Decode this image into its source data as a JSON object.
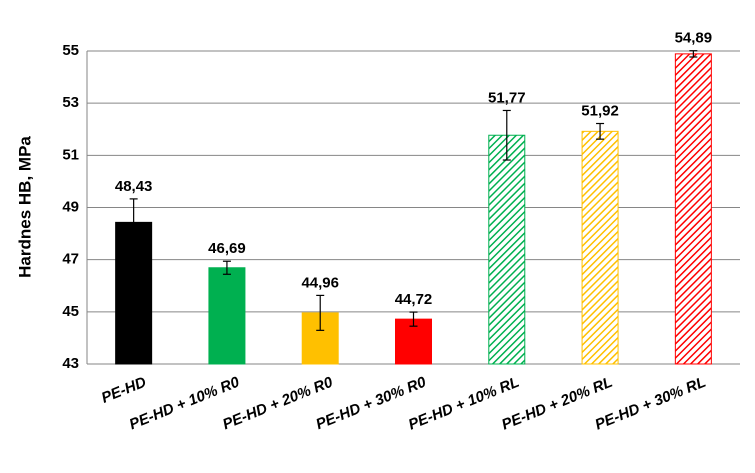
{
  "chart_data": {
    "type": "bar",
    "y_label": "Hardnes HB, MPa",
    "categories": [
      "PE-HD",
      "PE-HD + 10% R0",
      "PE-HD + 20% R0",
      "PE-HD + 30% R0",
      "PE-HD + 10% RL",
      "PE-HD + 20% RL",
      "PE-HD + 30% RL"
    ],
    "values": [
      48.43,
      46.69,
      44.96,
      44.72,
      51.77,
      51.92,
      54.89
    ],
    "value_labels": [
      "48,43",
      "46,69",
      "44,96",
      "44,72",
      "51,77",
      "51,92",
      "54,89"
    ],
    "errors": [
      0.9,
      0.25,
      0.67,
      0.27,
      0.95,
      0.3,
      0.12
    ],
    "colors": [
      "#000000",
      "#00b050",
      "#ffc000",
      "#ff0000",
      "#00b050",
      "#ffc000",
      "#ff0000"
    ],
    "hatched": [
      false,
      false,
      false,
      false,
      true,
      true,
      true
    ],
    "ylim": [
      43,
      55
    ],
    "yticks": [
      43,
      45,
      47,
      49,
      51,
      53,
      55
    ],
    "grid": true
  }
}
